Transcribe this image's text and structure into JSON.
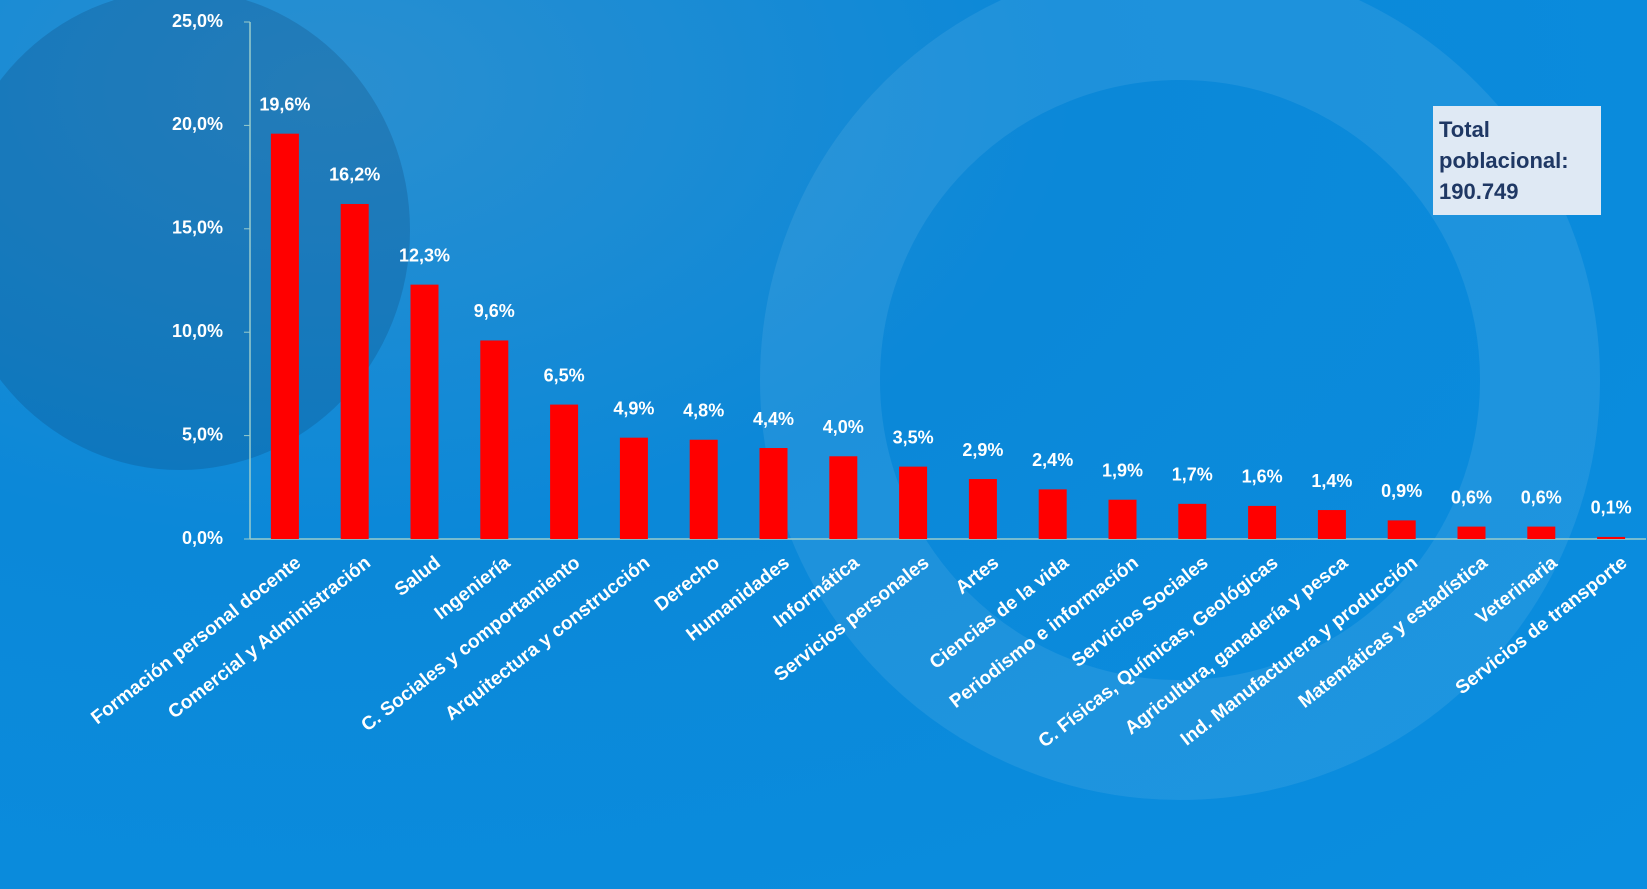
{
  "chart_data": {
    "type": "bar",
    "categories": [
      "Formación personal docente",
      "Comercial y Administración",
      "Salud",
      "Ingeniería",
      "C. Sociales y comportamiento",
      "Arquitectura y construcción",
      "Derecho",
      "Humanidades",
      "Informática",
      "Servicios personales",
      "Artes",
      "Ciencias de la vida",
      "Periodismo e información",
      "Servicios Sociales",
      "C. Físicas, Químicas, Geológicas",
      "Agricultura, ganadería y pesca",
      "Ind. Manufacturera y producción",
      "Matemáticas y estadística",
      "Veterinaria",
      "Servicios de transporte"
    ],
    "values": [
      19.6,
      16.2,
      12.3,
      9.6,
      6.5,
      4.9,
      4.8,
      4.4,
      4.0,
      3.5,
      2.9,
      2.4,
      1.9,
      1.7,
      1.6,
      1.4,
      0.9,
      0.6,
      0.6,
      0.1
    ],
    "value_labels": [
      "19,6%",
      "16,2%",
      "12,3%",
      "9,6%",
      "6,5%",
      "4,9%",
      "4,8%",
      "4,4%",
      "4,0%",
      "3,5%",
      "2,9%",
      "2,4%",
      "1,9%",
      "1,7%",
      "1,6%",
      "1,4%",
      "0,9%",
      "0,6%",
      "0,6%",
      "0,1%"
    ],
    "color": "#ff0000",
    "ylim": [
      0,
      25
    ],
    "yticks": [
      {
        "value": 0,
        "label": "0,0%"
      },
      {
        "value": 5,
        "label": "5,0%"
      },
      {
        "value": 10,
        "label": "10,0%"
      },
      {
        "value": 15,
        "label": "15,0%"
      },
      {
        "value": 20,
        "label": "20,0%"
      },
      {
        "value": 25,
        "label": "25,0%"
      }
    ],
    "annotation": "Total poblacional: 190.749"
  }
}
